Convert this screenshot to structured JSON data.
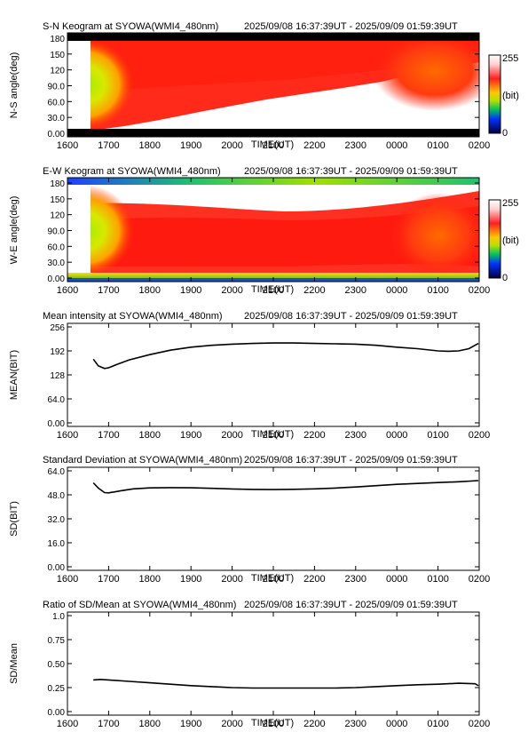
{
  "colors": {
    "frame": "#000000",
    "line": "#000000"
  },
  "colorbar": {
    "max_label": "255",
    "unit_label": "(bit)",
    "min_label": "0",
    "stops": [
      "#ffffff",
      "#ff0000",
      "#ffff00",
      "#00c000",
      "#0000ff",
      "#000000"
    ]
  },
  "chart_data": [
    {
      "type": "heatmap",
      "title": "S-N Keogram at SYOWA(WMI4_480nm)",
      "time_range": "2025/09/08 16:37:39UT - 2025/09/09 01:59:39UT",
      "xlabel": "TIME(UT)",
      "ylabel": "N-S angle(deg)",
      "xticks": [
        "1600",
        "1700",
        "1800",
        "1900",
        "2000",
        "2100",
        "2200",
        "2300",
        "0000",
        "0100",
        "0200"
      ],
      "yticks": [
        "0.00",
        "30.0",
        "60.0",
        "90.0",
        "120",
        "150",
        "180"
      ],
      "ylim": [
        0,
        180
      ],
      "data_start_x": 1637.65,
      "colorbar_unit": "(bit)",
      "value_range": [
        0,
        255
      ]
    },
    {
      "type": "heatmap",
      "title": "E-W Keogram at SYOWA(WMI4_480nm)",
      "time_range": "2025/09/08 16:37:39UT - 2025/09/09 01:59:39UT",
      "xlabel": "TIME(UT)",
      "ylabel": "W-E angle(deg)",
      "xticks": [
        "1600",
        "1700",
        "1800",
        "1900",
        "2000",
        "2100",
        "2200",
        "2300",
        "0000",
        "0100",
        "0200"
      ],
      "yticks": [
        "0.00",
        "30.0",
        "60.0",
        "90.0",
        "120",
        "150",
        "180"
      ],
      "ylim": [
        0,
        180
      ],
      "data_start_x": 1637.65,
      "colorbar_unit": "(bit)",
      "value_range": [
        0,
        255
      ]
    },
    {
      "type": "line",
      "title": "Mean intensity at SYOWA(WMI4_480nm)",
      "time_range": "2025/09/08 16:37:39UT - 2025/09/09 01:59:39UT",
      "xlabel": "TIME(UT)",
      "ylabel": "MEAN(BIT)",
      "xticks": [
        "1600",
        "1700",
        "1800",
        "1900",
        "2000",
        "2100",
        "2200",
        "2300",
        "0000",
        "0100",
        "0200"
      ],
      "yticks": [
        "0.00",
        "64.0",
        "128",
        "192",
        "256"
      ],
      "ylim": [
        0,
        256
      ],
      "x": [
        16.63,
        16.75,
        16.9,
        17.0,
        17.2,
        17.5,
        18.0,
        18.5,
        19.0,
        19.5,
        20.0,
        20.5,
        21.0,
        21.5,
        22.0,
        22.5,
        23.0,
        23.5,
        24.0,
        24.5,
        25.0,
        25.25,
        25.5,
        25.75,
        25.98
      ],
      "y": [
        170,
        152,
        145,
        147,
        156,
        168,
        182,
        194,
        202,
        207,
        210,
        212,
        213,
        213,
        212,
        211,
        210,
        207,
        202,
        198,
        192,
        191,
        192,
        198,
        212
      ]
    },
    {
      "type": "line",
      "title": "Standard Deviation at SYOWA(WMI4_480nm)",
      "time_range": "2025/09/08 16:37:39UT - 2025/09/09 01:59:39UT",
      "xlabel": "TIME(UT)",
      "ylabel": "SD(BIT)",
      "xticks": [
        "1600",
        "1700",
        "1800",
        "1900",
        "2000",
        "2100",
        "2200",
        "2300",
        "0000",
        "0100",
        "0200"
      ],
      "yticks": [
        "0.00",
        "16.0",
        "32.0",
        "48.0",
        "64.0"
      ],
      "ylim": [
        0,
        64
      ],
      "x": [
        16.63,
        16.75,
        16.9,
        17.0,
        17.3,
        17.6,
        18.0,
        18.5,
        19.0,
        19.5,
        20.0,
        20.5,
        21.0,
        21.5,
        22.0,
        22.5,
        23.0,
        23.5,
        24.0,
        24.5,
        25.0,
        25.5,
        25.98
      ],
      "y": [
        56,
        52.5,
        49.5,
        49.3,
        50.7,
        52.0,
        52.6,
        52.8,
        52.7,
        52.3,
        51.9,
        51.6,
        51.5,
        51.7,
        52.0,
        52.5,
        53.2,
        54.1,
        55.0,
        55.6,
        56.2,
        56.7,
        57.5
      ]
    },
    {
      "type": "line",
      "title": "Ratio of SD/Mean at SYOWA(WMI4_480nm)",
      "time_range": "2025/09/08 16:37:39UT - 2025/09/09 01:59:39UT",
      "xlabel": "TIME(UT)",
      "ylabel": "SD/Mean",
      "xticks": [
        "1600",
        "1700",
        "1800",
        "1900",
        "2000",
        "2100",
        "2200",
        "2300",
        "0000",
        "0100",
        "0200"
      ],
      "yticks": [
        "0.00",
        "0.25",
        "0.50",
        "0.75",
        "1.0"
      ],
      "ylim": [
        0,
        1.0
      ],
      "x": [
        16.63,
        16.8,
        17.0,
        17.5,
        18.0,
        18.5,
        19.0,
        19.5,
        20.0,
        20.5,
        21.0,
        21.5,
        22.0,
        22.5,
        23.0,
        23.5,
        24.0,
        24.5,
        25.0,
        25.5,
        25.9,
        25.98
      ],
      "y": [
        0.33,
        0.335,
        0.33,
        0.315,
        0.3,
        0.285,
        0.27,
        0.26,
        0.25,
        0.245,
        0.245,
        0.245,
        0.245,
        0.245,
        0.25,
        0.26,
        0.27,
        0.28,
        0.285,
        0.295,
        0.29,
        0.27
      ]
    }
  ]
}
